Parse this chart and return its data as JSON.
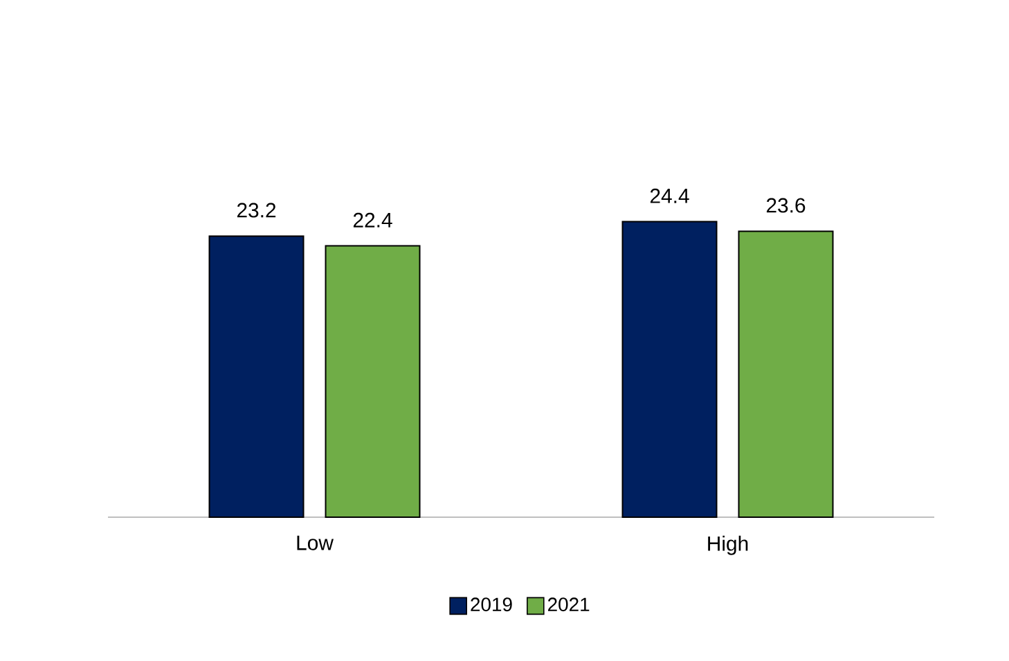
{
  "chart_data": {
    "type": "bar",
    "categories": [
      "Low",
      "High"
    ],
    "series": [
      {
        "name": "2019",
        "color": "#002060",
        "values": [
          23.2,
          24.4
        ]
      },
      {
        "name": "2021",
        "color": "#70ad47",
        "values": [
          22.4,
          23.6
        ]
      }
    ],
    "data_labels": true,
    "legend": "bottom"
  }
}
